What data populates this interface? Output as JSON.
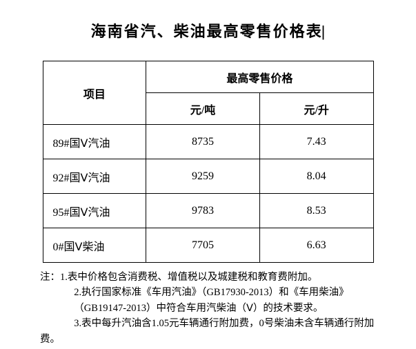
{
  "title": "海南省汽、柴油最高零售价格表",
  "headers": {
    "item": "项目",
    "priceGroup": "最高零售价格",
    "perTon": "元/吨",
    "perLiter": "元/升"
  },
  "rows": [
    {
      "name": "89#国Ⅴ汽油",
      "perTon": "8735",
      "perLiter": "7.43"
    },
    {
      "name": "92#国Ⅴ汽油",
      "perTon": "9259",
      "perLiter": "8.04"
    },
    {
      "name": "95#国Ⅴ汽油",
      "perTon": "9783",
      "perLiter": "8.53"
    },
    {
      "name": "0#国Ⅴ柴油",
      "perTon": "7705",
      "perLiter": "6.63"
    }
  ],
  "notes": {
    "line1": "注：1.表中价格包含消费税、增值税以及城建税和教育费附加。",
    "line2a": "2.执行国家标准《车用汽油》（GB17930-2013）和《车用柴油》",
    "line2b": "（GB19147-2013）中符合车用汽柴油（Ⅴ）的技术要求。",
    "line3a": "3.表中每升汽油含1.05元车辆通行附加费，0号柴油未含车辆通行附加",
    "line3b": "费。"
  }
}
